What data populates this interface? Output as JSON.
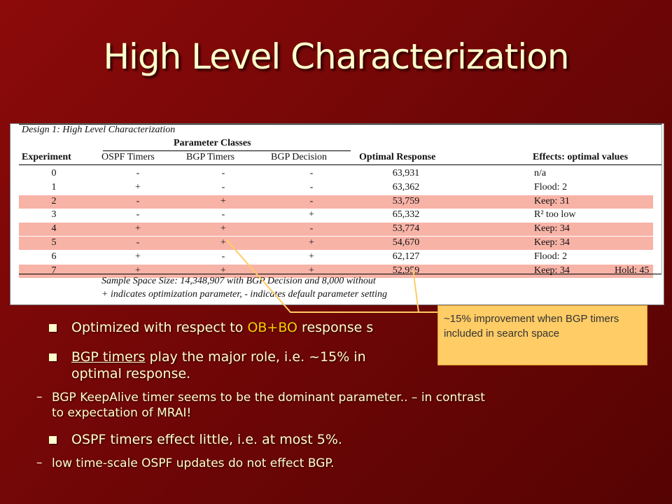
{
  "slide": {
    "title": "High Level Characterization"
  },
  "table": {
    "caption": "Design 1: High Level Characterization",
    "group_title": "Parameter Classes",
    "headers": {
      "experiment": "Experiment",
      "ospf": "OSPF Timers",
      "bgp_timers": "BGP Timers",
      "bgp_decision": "BGP Decision",
      "response": "Optimal Response",
      "effects": "Effects: optimal values"
    },
    "rows": [
      {
        "exp": "0",
        "ospf": "-",
        "bgpt": "-",
        "bgpd": "-",
        "resp": "63,931",
        "eff": "n/a",
        "extra": "",
        "highlight": false
      },
      {
        "exp": "1",
        "ospf": "+",
        "bgpt": "-",
        "bgpd": "-",
        "resp": "63,362",
        "eff": "Flood: 2",
        "extra": "",
        "highlight": false
      },
      {
        "exp": "2",
        "ospf": "-",
        "bgpt": "+",
        "bgpd": "-",
        "resp": "53,759",
        "eff": "Keep: 31",
        "extra": "",
        "highlight": true
      },
      {
        "exp": "3",
        "ospf": "-",
        "bgpt": "-",
        "bgpd": "+",
        "resp": "65,332",
        "eff": "R² too low",
        "extra": "",
        "highlight": false
      },
      {
        "exp": "4",
        "ospf": "+",
        "bgpt": "+",
        "bgpd": "-",
        "resp": "53,774",
        "eff": "Keep: 34",
        "extra": "",
        "highlight": true
      },
      {
        "exp": "5",
        "ospf": "-",
        "bgpt": "+",
        "bgpd": "+",
        "resp": "54,670",
        "eff": "Keep: 34",
        "extra": "",
        "highlight": true
      },
      {
        "exp": "6",
        "ospf": "+",
        "bgpt": "-",
        "bgpd": "+",
        "resp": "62,127",
        "eff": "Flood: 2",
        "extra": "",
        "highlight": false
      },
      {
        "exp": "7",
        "ospf": "+",
        "bgpt": "+",
        "bgpd": "+",
        "resp": "52,959",
        "eff": "Keep: 34",
        "extra": "Hold: 45",
        "highlight": true
      }
    ],
    "note1": "Sample Space Size: 14,348,907 with BGP Decision and 8,000 without",
    "note2": "+ indicates optimization parameter, - indicates default parameter setting"
  },
  "callout": {
    "text": "~15% improvement when BGP timers included in search space"
  },
  "bullets": {
    "b1_pre": "Optimized with respect to ",
    "b1_accent": "OB+BO",
    "b1_post": " response s",
    "b2_ul": "BGP timers",
    "b2_line1": " play the major role, i.e. ~15% in",
    "b2_line2": "optimal response.",
    "sub1_line1": "BGP KeepAlive timer seems to be the dominant parameter.. – in contrast",
    "sub1_line2": "to expectation of MRAI!",
    "b3": "OSPF timers effect little, i.e. at most 5%.",
    "sub2": "low time-scale OSPF updates do not effect BGP.",
    "dash": "–"
  },
  "colors": {
    "background": "#7a0808",
    "title": "#ffffcc",
    "accent": "#ffcc00",
    "highlight_row": "#f8b3a7",
    "callout_bg": "#ffcc66"
  }
}
